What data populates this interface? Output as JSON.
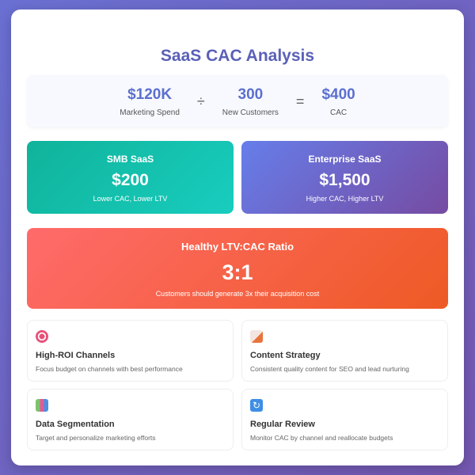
{
  "title": "SaaS CAC Analysis",
  "formula": {
    "spend": {
      "value": "$120K",
      "label": "Marketing Spend"
    },
    "divide": "÷",
    "customers": {
      "value": "300",
      "label": "New Customers"
    },
    "equals": "=",
    "cac": {
      "value": "$400",
      "label": "CAC"
    }
  },
  "segments": [
    {
      "title": "SMB SaaS",
      "value": "$200",
      "note": "Lower CAC, Lower LTV"
    },
    {
      "title": "Enterprise SaaS",
      "value": "$1,500",
      "note": "Higher CAC, Higher LTV"
    }
  ],
  "ratio": {
    "title": "Healthy LTV:CAC Ratio",
    "value": "3:1",
    "note": "Customers should generate 3x their acquisition cost"
  },
  "tips": [
    {
      "icon": "target-icon",
      "title": "High-ROI Channels",
      "desc": "Focus budget on channels with best performance"
    },
    {
      "icon": "memo-icon",
      "title": "Content Strategy",
      "desc": "Consistent quality content for SEO and lead nurturing"
    },
    {
      "icon": "bar-chart-icon",
      "title": "Data Segmentation",
      "desc": "Target and personalize marketing efforts"
    },
    {
      "icon": "refresh-icon",
      "title": "Regular Review",
      "desc": "Monitor CAC by channel and reallocate budgets"
    }
  ]
}
